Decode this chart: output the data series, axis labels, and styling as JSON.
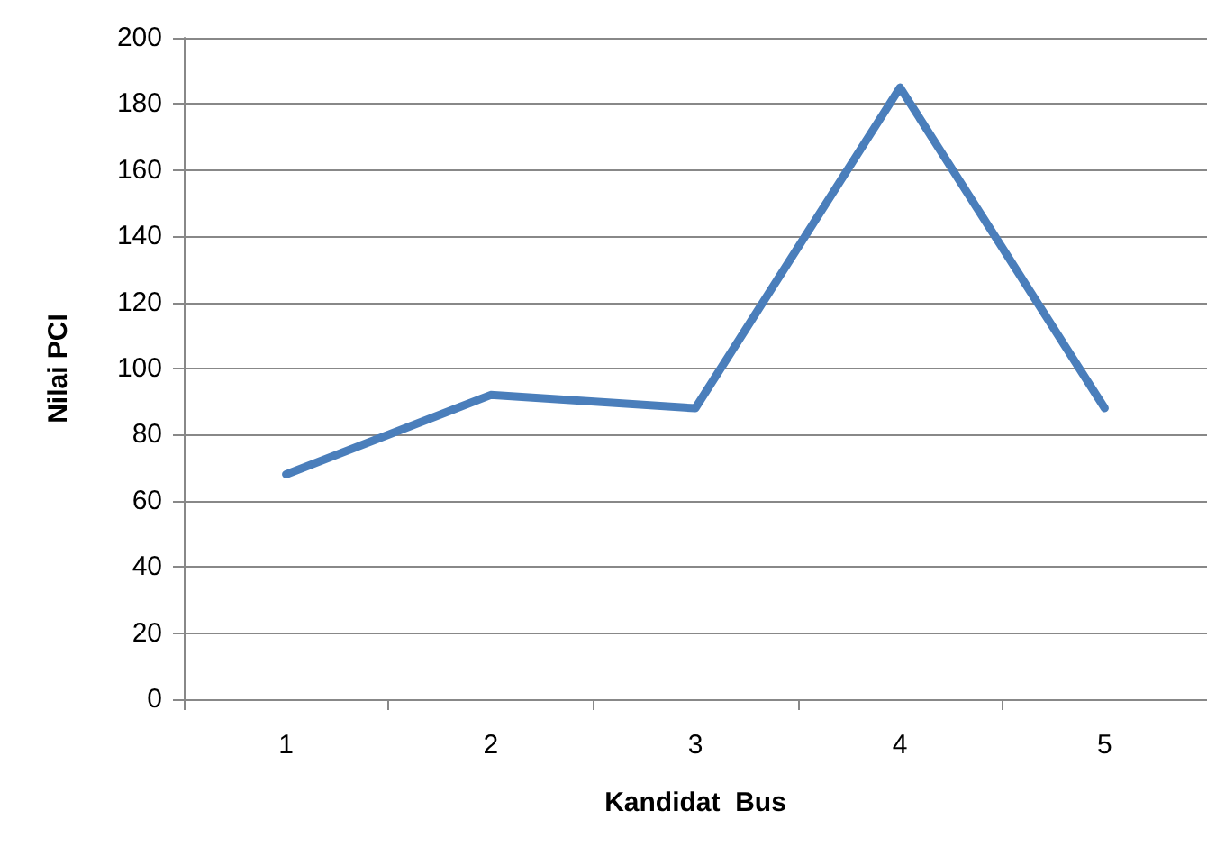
{
  "chart_data": {
    "type": "line",
    "xlabel": "Kandidat  Bus",
    "ylabel": "Nilai PCI",
    "categories": [
      "1",
      "2",
      "3",
      "4",
      "5"
    ],
    "series": [
      {
        "color": "#4a7ebb",
        "values": [
          68,
          92,
          88,
          185,
          88
        ]
      }
    ],
    "ylim": [
      0,
      200
    ],
    "yticks": [
      0,
      20,
      40,
      60,
      80,
      100,
      120,
      140,
      160,
      180,
      200
    ],
    "grid": "y",
    "marker": "none",
    "line_style": "solid"
  }
}
